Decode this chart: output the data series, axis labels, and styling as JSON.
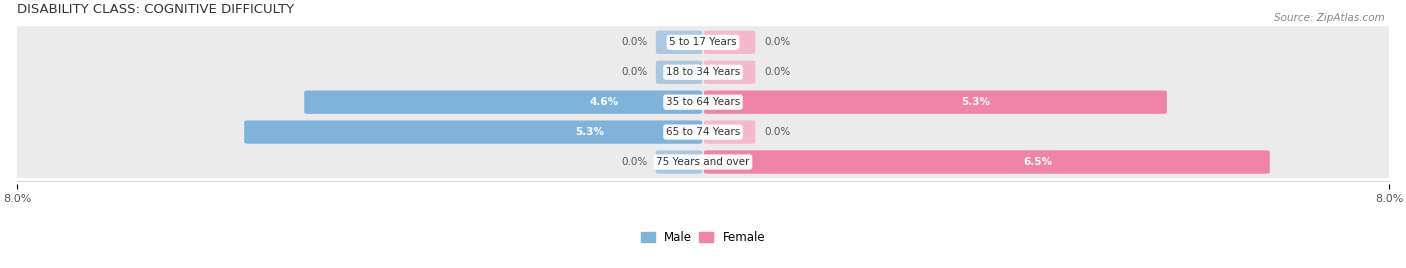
{
  "title": "DISABILITY CLASS: COGNITIVE DIFFICULTY",
  "source": "Source: ZipAtlas.com",
  "categories": [
    "5 to 17 Years",
    "18 to 34 Years",
    "35 to 64 Years",
    "65 to 74 Years",
    "75 Years and over"
  ],
  "male_values": [
    0.0,
    0.0,
    4.6,
    5.3,
    0.0
  ],
  "female_values": [
    0.0,
    0.0,
    5.3,
    0.0,
    6.5
  ],
  "xlim": 8.0,
  "male_color": "#7fb3d9",
  "female_color": "#f083a8",
  "row_bg_color": "#ebebeb",
  "title_fontsize": 9.5,
  "source_fontsize": 7.5,
  "bar_label_fontsize": 7.5,
  "category_fontsize": 7.5,
  "axis_label_fontsize": 8,
  "legend_fontsize": 8.5,
  "stub_male_color": "#aac8e4",
  "stub_female_color": "#f5b8ce"
}
